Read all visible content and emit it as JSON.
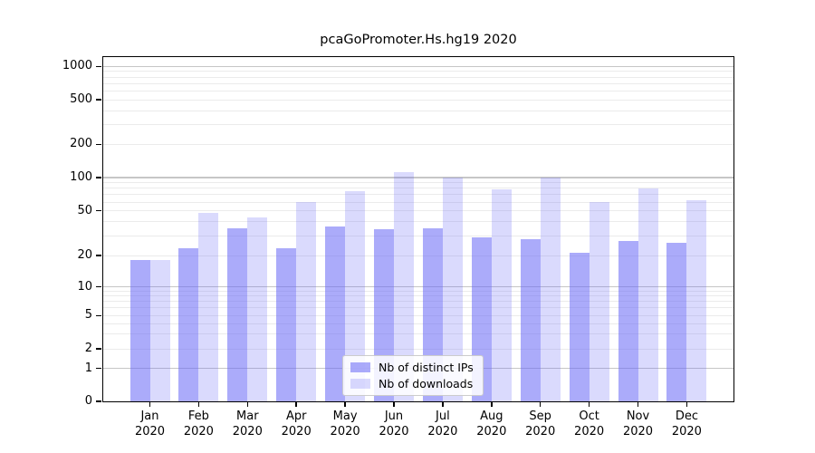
{
  "title": "pcaGoPromoter.Hs.hg19 2020",
  "chart_data": {
    "type": "bar",
    "title": "pcaGoPromoter.Hs.hg19 2020",
    "categories": [
      "Jan",
      "Feb",
      "Mar",
      "Apr",
      "May",
      "Jun",
      "Jul",
      "Aug",
      "Sep",
      "Oct",
      "Nov",
      "Dec"
    ],
    "year_label": "2020",
    "series": [
      {
        "name": "Nb of distinct IPs",
        "color": "rgba(102,102,245,0.55)",
        "values": [
          18,
          23,
          35,
          23,
          36,
          34,
          35,
          29,
          28,
          21,
          27,
          26
        ]
      },
      {
        "name": "Nb of downloads",
        "color": "rgba(102,102,245,0.24)",
        "values": [
          18,
          48,
          44,
          60,
          75,
          112,
          100,
          78,
          100,
          60,
          80,
          62
        ]
      }
    ],
    "xlabel": "",
    "ylabel": "",
    "y_scale": "symlog-like",
    "y_ticks": [
      0,
      1,
      2,
      5,
      10,
      20,
      50,
      100,
      200,
      500,
      1000
    ],
    "ylim": [
      0,
      1100
    ],
    "grid": "horizontal",
    "legend_position": "inside-bottom-center"
  },
  "legend": {
    "items": [
      {
        "label": "Nb of distinct IPs",
        "color": "rgba(102,102,245,0.55)"
      },
      {
        "label": "Nb of downloads",
        "color": "rgba(102,102,245,0.24)"
      }
    ]
  },
  "colors": {
    "bar_dark": "rgba(102,102,245,0.55)",
    "bar_light": "rgba(102,102,245,0.24)",
    "grid_major": "#c6c6c6",
    "grid_minor": "#ebebeb",
    "axis": "#000000",
    "background": "#ffffff"
  }
}
